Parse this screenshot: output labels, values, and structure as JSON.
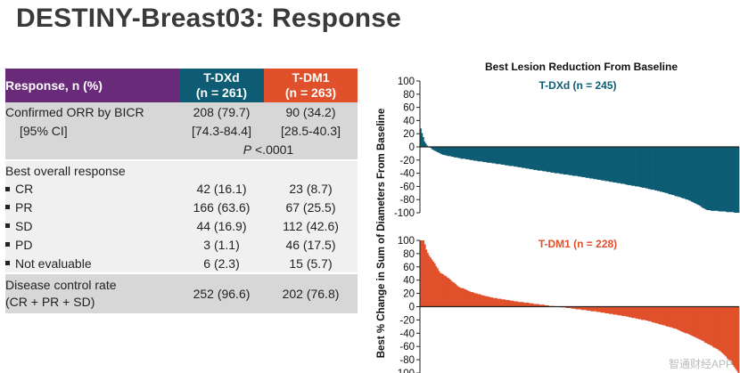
{
  "page": {
    "title": "DESTINY-Breast03: Response",
    "watermark": "智通财经APP"
  },
  "table": {
    "header": {
      "label": "Response, n (%)",
      "col1": [
        "T-DXd",
        "(n = 261)"
      ],
      "col2": [
        "T-DM1",
        "(n = 263)"
      ]
    },
    "orr": {
      "label1": "Confirmed ORR by BICR",
      "label2": "[95% CI]",
      "v1a": "208 (79.7)",
      "v1b": "[74.3-84.4]",
      "v2a": "90 (34.2)",
      "v2b": "[28.5-40.3]",
      "p_prefix": "P",
      "p_value": "<.0001"
    },
    "bor_label": "Best overall response",
    "rows": [
      {
        "label": "CR",
        "v1": "42 (16.1)",
        "v2": "23 (8.7)"
      },
      {
        "label": "PR",
        "v1": "166 (63.6)",
        "v2": "67 (25.5)"
      },
      {
        "label": "SD",
        "v1": "44 (16.9)",
        "v2": "112 (42.6)"
      },
      {
        "label": "PD",
        "v1": "3 (1.1)",
        "v2": "46 (17.5)"
      },
      {
        "label": "Not evaluable",
        "v1": "6 (2.3)",
        "v2": "15 (5.7)"
      }
    ],
    "dcr": {
      "label1": "Disease control rate",
      "label2": "(CR + PR + SD)",
      "v1": "252 (96.6)",
      "v2": "202 (76.8)"
    }
  },
  "chart_data": {
    "type": "bar",
    "title": "Best Lesion Reduction From Baseline",
    "ylabel": "Best % Change in Sum of Diameters From Baseline",
    "ylim": [
      -100,
      100
    ],
    "yticks": [
      100,
      80,
      60,
      40,
      20,
      0,
      -20,
      -40,
      -60,
      -80,
      -100
    ],
    "colors": {
      "tdxd": "#0d5c74",
      "tdm1": "#e0502a"
    },
    "series": [
      {
        "name": "T-DXd (n = 245)",
        "n": 245,
        "curve": [
          [
            0,
            28
          ],
          [
            0.005,
            20
          ],
          [
            0.012,
            8
          ],
          [
            0.02,
            2
          ],
          [
            0.04,
            -5
          ],
          [
            0.07,
            -12
          ],
          [
            0.12,
            -17
          ],
          [
            0.2,
            -23
          ],
          [
            0.3,
            -30
          ],
          [
            0.4,
            -38
          ],
          [
            0.5,
            -45
          ],
          [
            0.6,
            -53
          ],
          [
            0.68,
            -60
          ],
          [
            0.75,
            -67
          ],
          [
            0.8,
            -74
          ],
          [
            0.85,
            -82
          ],
          [
            0.88,
            -90
          ],
          [
            0.9,
            -96
          ],
          [
            1.0,
            -100
          ]
        ]
      },
      {
        "name": "T-DM1 (n = 228)",
        "n": 228,
        "curve": [
          [
            0,
            100
          ],
          [
            0.01,
            100
          ],
          [
            0.02,
            82
          ],
          [
            0.04,
            68
          ],
          [
            0.06,
            52
          ],
          [
            0.09,
            42
          ],
          [
            0.12,
            30
          ],
          [
            0.16,
            22
          ],
          [
            0.22,
            14
          ],
          [
            0.3,
            8
          ],
          [
            0.38,
            3
          ],
          [
            0.43,
            0
          ],
          [
            0.48,
            -3
          ],
          [
            0.56,
            -8
          ],
          [
            0.64,
            -14
          ],
          [
            0.72,
            -22
          ],
          [
            0.8,
            -33
          ],
          [
            0.86,
            -45
          ],
          [
            0.9,
            -55
          ],
          [
            0.94,
            -66
          ],
          [
            0.97,
            -80
          ],
          [
            1.0,
            -100
          ]
        ]
      }
    ]
  }
}
